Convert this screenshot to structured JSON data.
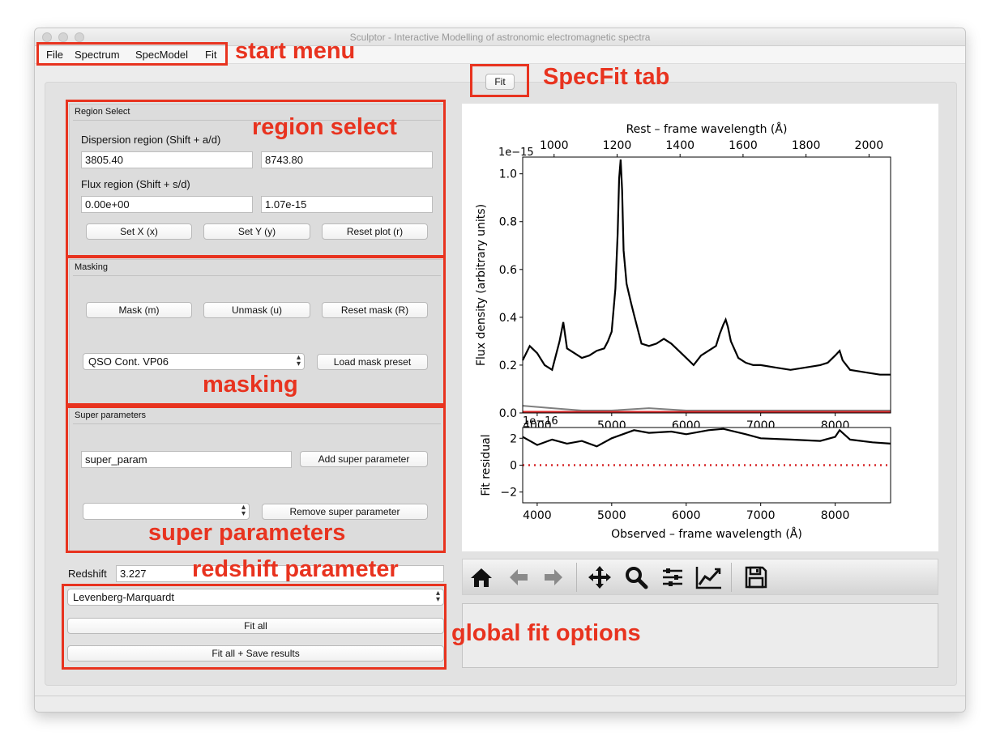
{
  "window": {
    "title": "Sculptor - Interactive Modelling of astronomic electromagnetic spectra"
  },
  "menu": {
    "items": [
      "File",
      "Spectrum",
      "SpecModel",
      "Fit"
    ]
  },
  "tab": {
    "label": "Fit"
  },
  "region_select": {
    "title": "Region Select",
    "dispersion_label": "Dispersion region (Shift + a/d)",
    "disp_min": "3805.40",
    "disp_max": "8743.80",
    "flux_label": "Flux region (Shift + s/d)",
    "flux_min": "0.00e+00",
    "flux_max": "1.07e-15",
    "set_x": "Set X (x)",
    "set_y": "Set Y (y)",
    "reset_plot": "Reset plot (r)"
  },
  "masking": {
    "title": "Masking",
    "mask": "Mask (m)",
    "unmask": "Unmask (u)",
    "reset_mask": "Reset mask (R)",
    "preset_value": "QSO Cont. VP06",
    "load_preset": "Load mask preset"
  },
  "super_params": {
    "title": "Super parameters",
    "name_value": "super_param",
    "add": "Add super parameter",
    "selected": "",
    "remove": "Remove super parameter"
  },
  "redshift": {
    "label": "Redshift",
    "value": "3.227"
  },
  "fit_options": {
    "method": "Levenberg-Marquardt",
    "fit_all": "Fit all",
    "fit_all_save": "Fit all + Save results"
  },
  "annotations": {
    "start_menu": "start menu",
    "specfit_tab": "SpecFit tab",
    "region_select": "region select",
    "masking": "masking",
    "super_parameters": "super parameters",
    "redshift_parameter": "redshift parameter",
    "global_fit_options": "global fit options",
    "color": "#e8331f"
  },
  "toolbar": {
    "icons": [
      "home-icon",
      "back-arrow-icon",
      "forward-arrow-icon",
      "pan-icon",
      "zoom-icon",
      "configure-subplots-icon",
      "edit-axis-icon",
      "save-icon"
    ]
  },
  "chart_data": [
    {
      "type": "line",
      "title": "",
      "xlabel": "",
      "ylabel": "Flux density (arbitrary units)",
      "top_xlabel": "Rest – frame wavelength (Å)",
      "top_ticks": [
        "1000",
        "1200",
        "1400",
        "1600",
        "1800",
        "2000"
      ],
      "x_ticks": [
        "4000",
        "5000",
        "6000",
        "7000",
        "8000"
      ],
      "y_ticks": [
        "0.0",
        "0.2",
        "0.4",
        "0.6",
        "0.8",
        "1.0"
      ],
      "offset_label": "1e−15",
      "xlim": [
        3805.4,
        8743.8
      ],
      "ylim": [
        0,
        1.07
      ],
      "series": [
        {
          "color": "#000000",
          "x": [
            3805,
            3900,
            4000,
            4100,
            4200,
            4300,
            4350,
            4400,
            4500,
            4600,
            4700,
            4800,
            4900,
            4950,
            5000,
            5050,
            5080,
            5100,
            5120,
            5140,
            5160,
            5200,
            5260,
            5300,
            5400,
            5500,
            5600,
            5700,
            5800,
            5900,
            6000,
            6100,
            6200,
            6300,
            6400,
            6450,
            6500,
            6530,
            6560,
            6600,
            6700,
            6800,
            6900,
            7000,
            7200,
            7400,
            7600,
            7800,
            7900,
            8000,
            8060,
            8100,
            8200,
            8400,
            8600,
            8743
          ],
          "y": [
            0.22,
            0.28,
            0.25,
            0.2,
            0.18,
            0.3,
            0.38,
            0.27,
            0.25,
            0.23,
            0.24,
            0.26,
            0.27,
            0.3,
            0.34,
            0.52,
            0.75,
            0.98,
            1.06,
            0.93,
            0.68,
            0.54,
            0.46,
            0.41,
            0.29,
            0.28,
            0.29,
            0.31,
            0.29,
            0.26,
            0.23,
            0.2,
            0.24,
            0.26,
            0.28,
            0.33,
            0.37,
            0.39,
            0.36,
            0.3,
            0.23,
            0.21,
            0.2,
            0.2,
            0.19,
            0.18,
            0.19,
            0.2,
            0.21,
            0.24,
            0.26,
            0.22,
            0.18,
            0.17,
            0.16,
            0.16
          ]
        },
        {
          "color": "#7f7f7f",
          "x": [
            3805,
            4200,
            4600,
            5000,
            5500,
            6000,
            7000,
            8000,
            8743
          ],
          "y": [
            0.03,
            0.02,
            0.01,
            0.01,
            0.02,
            0.01,
            0.01,
            0.01,
            0.01
          ]
        },
        {
          "color": "#d62728",
          "x": [
            3805,
            8743
          ],
          "y": [
            0.005,
            0.005
          ]
        }
      ]
    },
    {
      "type": "line",
      "title": "",
      "xlabel": "Observed – frame wavelength (Å)",
      "ylabel": "Fit residual",
      "offset_label": "1e−16",
      "x_ticks": [
        "4000",
        "5000",
        "6000",
        "7000",
        "8000"
      ],
      "y_ticks": [
        "−2",
        "0",
        "2"
      ],
      "xlim": [
        3805.4,
        8743.8
      ],
      "ylim": [
        -2.8,
        2.8
      ],
      "series": [
        {
          "color": "#000000",
          "x": [
            3805,
            4000,
            4200,
            4400,
            4600,
            4800,
            5000,
            5300,
            5500,
            5800,
            6000,
            6300,
            6500,
            6800,
            7000,
            7400,
            7800,
            8000,
            8060,
            8200,
            8500,
            8743
          ],
          "y": [
            2.1,
            1.5,
            1.9,
            1.6,
            1.8,
            1.4,
            2.0,
            2.6,
            2.4,
            2.5,
            2.3,
            2.6,
            2.7,
            2.3,
            2.0,
            1.9,
            1.8,
            2.1,
            2.6,
            1.9,
            1.7,
            1.6
          ]
        },
        {
          "color": "#d62728",
          "x": [
            3805,
            8743
          ],
          "y": [
            0,
            0
          ]
        }
      ]
    }
  ]
}
